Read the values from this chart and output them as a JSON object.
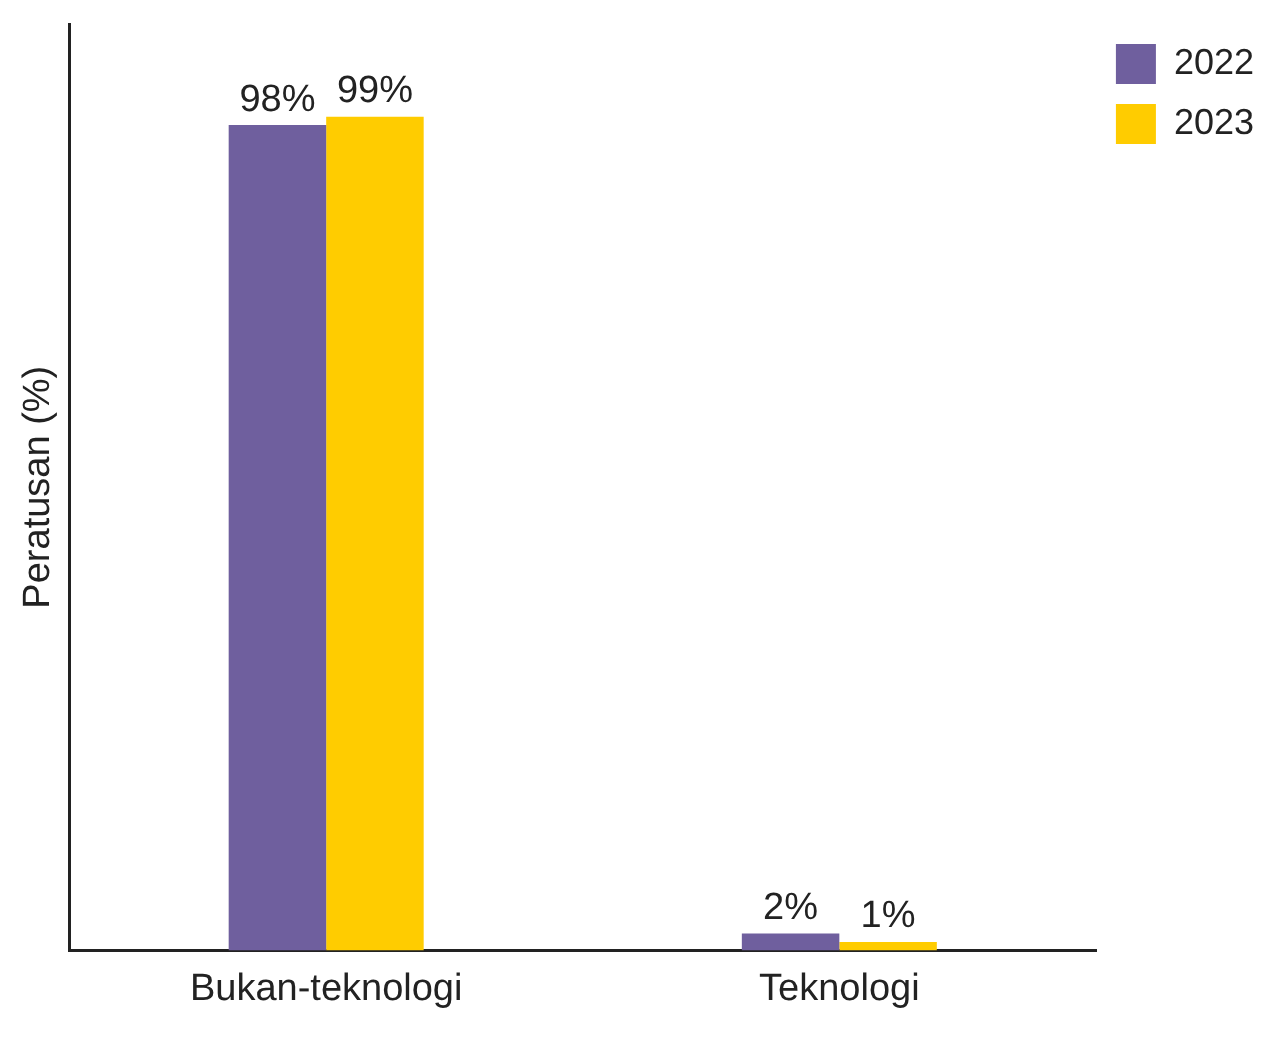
{
  "chart_data": {
    "type": "bar",
    "ylabel": "Peratusan (%)",
    "categories": [
      "Bukan-teknologi",
      "Teknologi"
    ],
    "series": [
      {
        "name": "2022",
        "color": "#6f5f9e",
        "values": [
          98,
          2
        ],
        "value_labels": [
          "98%",
          "2%"
        ]
      },
      {
        "name": "2023",
        "color": "#ffcc00",
        "values": [
          99,
          1
        ],
        "value_labels": [
          "99%",
          "1%"
        ]
      }
    ],
    "ylim": [
      0,
      110
    ],
    "tick_labels": "x",
    "legend": "top right"
  }
}
